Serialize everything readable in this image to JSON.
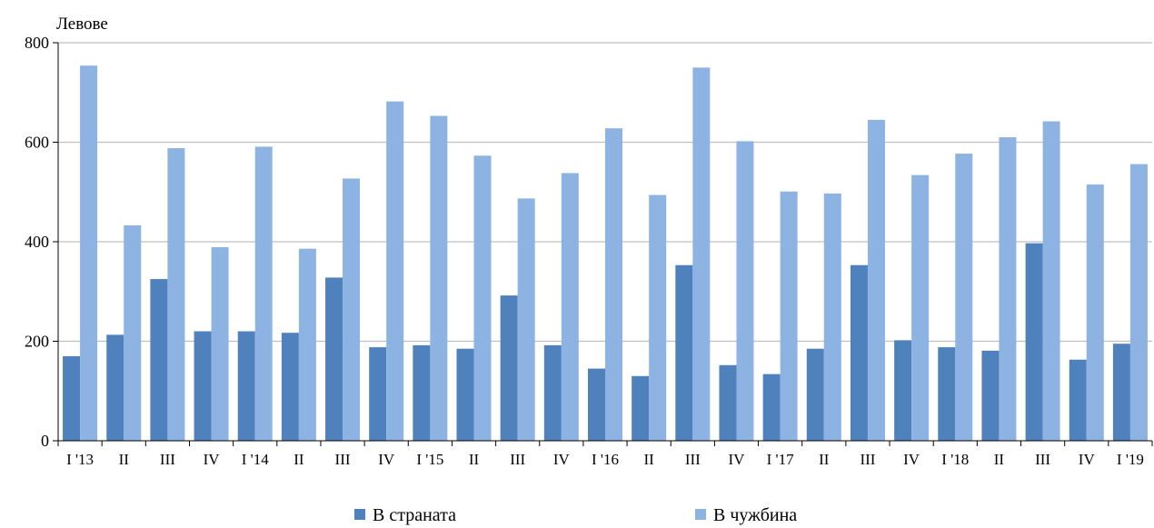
{
  "chart_data": {
    "type": "bar",
    "title": "",
    "ylabel": "Левове",
    "xlabel": "",
    "ylim": [
      0,
      800
    ],
    "yticks": [
      0,
      200,
      400,
      600,
      800
    ],
    "grid": true,
    "legend_position": "bottom",
    "categories": [
      "I '13",
      "II",
      "III",
      "IV",
      "I '14",
      "II",
      "III",
      "IV",
      "I '15",
      "II",
      "III",
      "IV",
      "I '16",
      "II",
      "III",
      "IV",
      "I '17",
      "II",
      "III",
      "IV",
      "I '18",
      "II",
      "III",
      "IV",
      "I '19"
    ],
    "series": [
      {
        "name": "В страната",
        "color": "#4f81bd",
        "values": [
          170,
          213,
          325,
          220,
          220,
          217,
          328,
          188,
          192,
          185,
          292,
          192,
          145,
          130,
          353,
          152,
          134,
          185,
          353,
          202,
          188,
          181,
          397,
          163,
          195
        ]
      },
      {
        "name": "В чужбина",
        "color": "#8db3e2",
        "values": [
          754,
          433,
          588,
          389,
          591,
          386,
          527,
          682,
          653,
          573,
          487,
          538,
          628,
          494,
          750,
          602,
          501,
          497,
          645,
          534,
          577,
          610,
          642,
          515,
          556
        ]
      }
    ]
  }
}
